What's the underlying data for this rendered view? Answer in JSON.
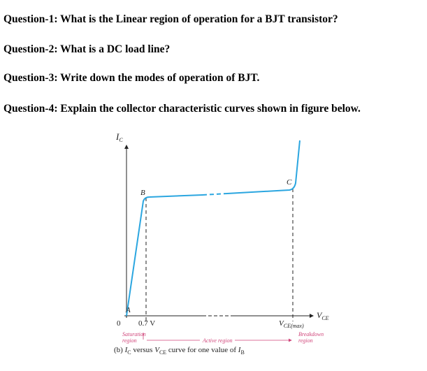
{
  "questions": [
    "Question-1: What is the Linear region of operation for a BJT transistor?",
    "Question-2: What is a DC load line?",
    "Question-3: Write down the modes of operation of BJT.",
    "Question-4: Explain the collector characteristic curves shown in figure below."
  ],
  "figure": {
    "y_axis": {
      "symbol": "I",
      "sub": "C"
    },
    "x_axis": {
      "symbol": "V",
      "sub": "CE"
    },
    "points": {
      "a": "A",
      "b": "B",
      "c": "C"
    },
    "origin": "0",
    "knee_voltage": "0.7 V",
    "vce_max": {
      "symbol": "V",
      "sub": "CE(max)"
    },
    "regions": {
      "saturation": [
        "Saturation",
        "region"
      ],
      "active": "Active region",
      "breakdown": [
        "Breakdown",
        "region"
      ]
    },
    "caption": [
      "(b) ",
      "I",
      "C",
      " versus ",
      "V",
      "CE",
      " curve for one value of ",
      "I",
      "B"
    ]
  }
}
